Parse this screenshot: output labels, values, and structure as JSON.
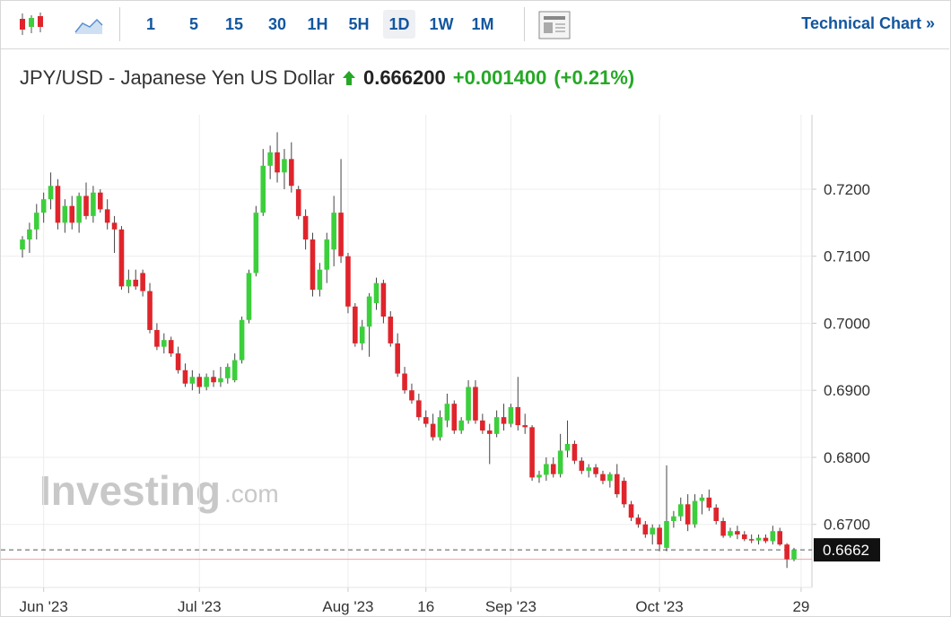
{
  "toolbar": {
    "intervals": [
      "1",
      "5",
      "15",
      "30",
      "1H",
      "5H",
      "1D",
      "1W",
      "1M"
    ],
    "active_interval": "1D",
    "technical_chart": "Technical Chart »"
  },
  "watermark": {
    "brand": "Investing",
    "suffix": ".com"
  },
  "chart_data": {
    "type": "candlestick",
    "title": "JPY/USD - Japanese Yen US Dollar",
    "price": "0.666200",
    "change": "+0.001400",
    "change_percent": "(+0.21%)",
    "up_color": "#3ccf3c",
    "down_color": "#e0242b",
    "grid": true,
    "ylim": [
      0.6606,
      0.7311
    ],
    "yticks": [
      {
        "value": 0.67,
        "label": "0.6700"
      },
      {
        "value": 0.68,
        "label": "0.6800"
      },
      {
        "value": 0.69,
        "label": "0.6900"
      },
      {
        "value": 0.7,
        "label": "0.7000"
      },
      {
        "value": 0.71,
        "label": "0.7100"
      },
      {
        "value": 0.72,
        "label": "0.7200"
      }
    ],
    "xticks": [
      {
        "value": "2023-06-01",
        "label": "Jun '23"
      },
      {
        "value": "2023-07-03",
        "label": "Jul '23"
      },
      {
        "value": "2023-08-01",
        "label": "Aug '23"
      },
      {
        "value": "2023-08-16",
        "label": "16"
      },
      {
        "value": "2023-09-01",
        "label": "Sep '23"
      },
      {
        "value": "2023-10-02",
        "label": "Oct '23"
      },
      {
        "value": "2023-10-29",
        "label": "29"
      }
    ],
    "last_price": {
      "value": 0.6662,
      "label": "0.6662"
    },
    "previous_close": 0.6648,
    "x": [
      "2023-05-29",
      "2023-05-30",
      "2023-05-31",
      "2023-06-01",
      "2023-06-02",
      "2023-06-05",
      "2023-06-06",
      "2023-06-07",
      "2023-06-08",
      "2023-06-09",
      "2023-06-12",
      "2023-06-13",
      "2023-06-14",
      "2023-06-15",
      "2023-06-16",
      "2023-06-19",
      "2023-06-20",
      "2023-06-21",
      "2023-06-22",
      "2023-06-23",
      "2023-06-26",
      "2023-06-27",
      "2023-06-28",
      "2023-06-29",
      "2023-06-30",
      "2023-07-03",
      "2023-07-04",
      "2023-07-05",
      "2023-07-06",
      "2023-07-07",
      "2023-07-10",
      "2023-07-11",
      "2023-07-12",
      "2023-07-13",
      "2023-07-14",
      "2023-07-17",
      "2023-07-18",
      "2023-07-19",
      "2023-07-20",
      "2023-07-21",
      "2023-07-24",
      "2023-07-25",
      "2023-07-26",
      "2023-07-27",
      "2023-07-28",
      "2023-07-31",
      "2023-08-01",
      "2023-08-02",
      "2023-08-03",
      "2023-08-04",
      "2023-08-07",
      "2023-08-08",
      "2023-08-09",
      "2023-08-10",
      "2023-08-11",
      "2023-08-14",
      "2023-08-15",
      "2023-08-16",
      "2023-08-17",
      "2023-08-18",
      "2023-08-21",
      "2023-08-22",
      "2023-08-23",
      "2023-08-24",
      "2023-08-25",
      "2023-08-28",
      "2023-08-29",
      "2023-08-30",
      "2023-08-31",
      "2023-09-01",
      "2023-09-04",
      "2023-09-05",
      "2023-09-06",
      "2023-09-07",
      "2023-09-08",
      "2023-09-11",
      "2023-09-12",
      "2023-09-13",
      "2023-09-14",
      "2023-09-15",
      "2023-09-18",
      "2023-09-19",
      "2023-09-20",
      "2023-09-21",
      "2023-09-22",
      "2023-09-25",
      "2023-09-26",
      "2023-09-27",
      "2023-09-28",
      "2023-09-29",
      "2023-10-02",
      "2023-10-03",
      "2023-10-04",
      "2023-10-05",
      "2023-10-06",
      "2023-10-09",
      "2023-10-10",
      "2023-10-11",
      "2023-10-12",
      "2023-10-13",
      "2023-10-16",
      "2023-10-17",
      "2023-10-18",
      "2023-10-19",
      "2023-10-20",
      "2023-10-23",
      "2023-10-24",
      "2023-10-25",
      "2023-10-26",
      "2023-10-27"
    ],
    "ohlc": [
      [
        0.711,
        0.713,
        0.7098,
        0.7125
      ],
      [
        0.7125,
        0.715,
        0.7105,
        0.714
      ],
      [
        0.714,
        0.7178,
        0.7125,
        0.7165
      ],
      [
        0.7165,
        0.7195,
        0.715,
        0.7185
      ],
      [
        0.7185,
        0.7225,
        0.717,
        0.7205
      ],
      [
        0.7205,
        0.7215,
        0.714,
        0.715
      ],
      [
        0.715,
        0.7185,
        0.7135,
        0.7175
      ],
      [
        0.7175,
        0.719,
        0.714,
        0.715
      ],
      [
        0.715,
        0.7195,
        0.7135,
        0.719
      ],
      [
        0.719,
        0.721,
        0.7155,
        0.716
      ],
      [
        0.716,
        0.7205,
        0.715,
        0.7195
      ],
      [
        0.7195,
        0.72,
        0.7165,
        0.717
      ],
      [
        0.717,
        0.7185,
        0.714,
        0.715
      ],
      [
        0.715,
        0.716,
        0.7105,
        0.714
      ],
      [
        0.714,
        0.7145,
        0.705,
        0.7055
      ],
      [
        0.7055,
        0.708,
        0.7045,
        0.7065
      ],
      [
        0.7065,
        0.708,
        0.705,
        0.7055
      ],
      [
        0.7075,
        0.708,
        0.704,
        0.7048
      ],
      [
        0.7048,
        0.706,
        0.6985,
        0.699
      ],
      [
        0.699,
        0.7,
        0.696,
        0.6965
      ],
      [
        0.6965,
        0.6985,
        0.6955,
        0.6975
      ],
      [
        0.6975,
        0.698,
        0.695,
        0.6955
      ],
      [
        0.6955,
        0.6965,
        0.6925,
        0.693
      ],
      [
        0.693,
        0.694,
        0.6905,
        0.691
      ],
      [
        0.691,
        0.693,
        0.69,
        0.692
      ],
      [
        0.692,
        0.6925,
        0.6895,
        0.6905
      ],
      [
        0.6905,
        0.6925,
        0.69,
        0.692
      ],
      [
        0.692,
        0.693,
        0.6905,
        0.6912
      ],
      [
        0.6912,
        0.6935,
        0.6905,
        0.6918
      ],
      [
        0.6918,
        0.694,
        0.691,
        0.6935
      ],
      [
        0.6915,
        0.6955,
        0.6912,
        0.6945
      ],
      [
        0.6945,
        0.701,
        0.694,
        0.7005
      ],
      [
        0.7005,
        0.708,
        0.7,
        0.7075
      ],
      [
        0.7075,
        0.7175,
        0.707,
        0.7165
      ],
      [
        0.7165,
        0.726,
        0.716,
        0.7235
      ],
      [
        0.7235,
        0.7265,
        0.7215,
        0.7255
      ],
      [
        0.7255,
        0.7285,
        0.721,
        0.7225
      ],
      [
        0.7225,
        0.726,
        0.72,
        0.7245
      ],
      [
        0.7245,
        0.727,
        0.7195,
        0.7205
      ],
      [
        0.72,
        0.7205,
        0.7155,
        0.716
      ],
      [
        0.716,
        0.717,
        0.711,
        0.7125
      ],
      [
        0.7125,
        0.7135,
        0.704,
        0.705
      ],
      [
        0.705,
        0.709,
        0.704,
        0.708
      ],
      [
        0.708,
        0.7135,
        0.706,
        0.7125
      ],
      [
        0.711,
        0.719,
        0.7085,
        0.7165
      ],
      [
        0.7165,
        0.7245,
        0.709,
        0.71
      ],
      [
        0.71,
        0.7105,
        0.7015,
        0.7025
      ],
      [
        0.7025,
        0.703,
        0.6965,
        0.697
      ],
      [
        0.697,
        0.7005,
        0.696,
        0.6995
      ],
      [
        0.6995,
        0.7045,
        0.695,
        0.704
      ],
      [
        0.703,
        0.7068,
        0.702,
        0.706
      ],
      [
        0.706,
        0.7065,
        0.7,
        0.701
      ],
      [
        0.701,
        0.7018,
        0.6965,
        0.697
      ],
      [
        0.697,
        0.6985,
        0.692,
        0.6925
      ],
      [
        0.6925,
        0.6935,
        0.6895,
        0.69
      ],
      [
        0.69,
        0.691,
        0.688,
        0.6885
      ],
      [
        0.6885,
        0.6895,
        0.6855,
        0.686
      ],
      [
        0.686,
        0.687,
        0.6845,
        0.685
      ],
      [
        0.685,
        0.6865,
        0.6825,
        0.683
      ],
      [
        0.683,
        0.687,
        0.6825,
        0.686
      ],
      [
        0.6855,
        0.6895,
        0.6845,
        0.688
      ],
      [
        0.688,
        0.6885,
        0.6835,
        0.684
      ],
      [
        0.684,
        0.686,
        0.6835,
        0.6855
      ],
      [
        0.6855,
        0.6915,
        0.685,
        0.6905
      ],
      [
        0.6905,
        0.6915,
        0.685,
        0.6855
      ],
      [
        0.6855,
        0.6865,
        0.6835,
        0.684
      ],
      [
        0.684,
        0.685,
        0.679,
        0.6835
      ],
      [
        0.6835,
        0.687,
        0.683,
        0.686
      ],
      [
        0.686,
        0.688,
        0.684,
        0.685
      ],
      [
        0.685,
        0.688,
        0.6845,
        0.6875
      ],
      [
        0.6875,
        0.692,
        0.684,
        0.6848
      ],
      [
        0.6848,
        0.6865,
        0.6835,
        0.6845
      ],
      [
        0.6845,
        0.6848,
        0.6765,
        0.677
      ],
      [
        0.677,
        0.678,
        0.6762,
        0.6774
      ],
      [
        0.6774,
        0.68,
        0.6765,
        0.679
      ],
      [
        0.679,
        0.68,
        0.677,
        0.6775
      ],
      [
        0.6775,
        0.6835,
        0.677,
        0.681
      ],
      [
        0.681,
        0.6855,
        0.68,
        0.682
      ],
      [
        0.682,
        0.6825,
        0.679,
        0.6795
      ],
      [
        0.6795,
        0.68,
        0.6775,
        0.678
      ],
      [
        0.678,
        0.679,
        0.677,
        0.6785
      ],
      [
        0.6785,
        0.679,
        0.677,
        0.6775
      ],
      [
        0.6775,
        0.678,
        0.676,
        0.6765
      ],
      [
        0.6765,
        0.6778,
        0.6755,
        0.6775
      ],
      [
        0.6775,
        0.679,
        0.674,
        0.6745
      ],
      [
        0.6765,
        0.677,
        0.6725,
        0.673
      ],
      [
        0.673,
        0.6735,
        0.6705,
        0.671
      ],
      [
        0.671,
        0.6715,
        0.6695,
        0.67
      ],
      [
        0.67,
        0.6705,
        0.668,
        0.6685
      ],
      [
        0.6685,
        0.67,
        0.667,
        0.6695
      ],
      [
        0.6695,
        0.67,
        0.666,
        0.667
      ],
      [
        0.6665,
        0.6788,
        0.666,
        0.6705
      ],
      [
        0.6705,
        0.672,
        0.6695,
        0.6712
      ],
      [
        0.6712,
        0.674,
        0.6705,
        0.673
      ],
      [
        0.673,
        0.6745,
        0.669,
        0.67
      ],
      [
        0.67,
        0.6745,
        0.6695,
        0.6735
      ],
      [
        0.6735,
        0.6745,
        0.6715,
        0.674
      ],
      [
        0.674,
        0.6752,
        0.672,
        0.6725
      ],
      [
        0.6725,
        0.673,
        0.67,
        0.6705
      ],
      [
        0.6705,
        0.671,
        0.668,
        0.6683
      ],
      [
        0.6683,
        0.6695,
        0.668,
        0.669
      ],
      [
        0.669,
        0.6698,
        0.6678,
        0.6685
      ],
      [
        0.6685,
        0.669,
        0.6675,
        0.6678
      ],
      [
        0.6678,
        0.6685,
        0.6672,
        0.6676
      ],
      [
        0.6676,
        0.6685,
        0.667,
        0.668
      ],
      [
        0.668,
        0.6685,
        0.6672,
        0.6675
      ],
      [
        0.6675,
        0.6698,
        0.667,
        0.669
      ],
      [
        0.669,
        0.6695,
        0.6668,
        0.667
      ],
      [
        0.667,
        0.6672,
        0.6635,
        0.6648
      ],
      [
        0.6648,
        0.6665,
        0.6645,
        0.6662
      ]
    ]
  }
}
